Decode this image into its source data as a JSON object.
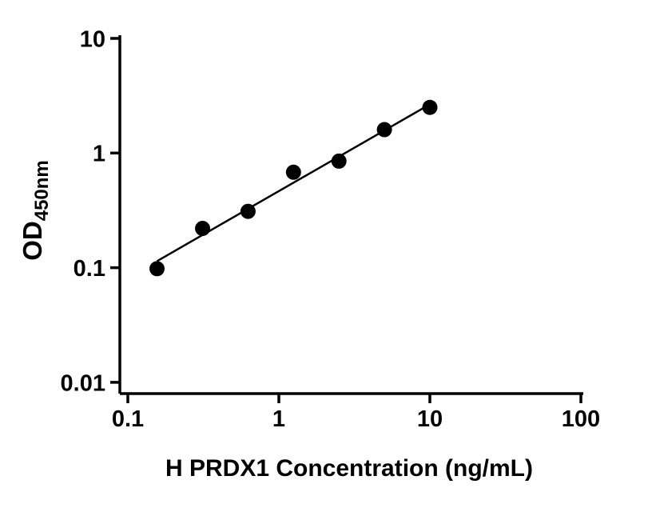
{
  "chart_data": {
    "type": "scatter",
    "title": "",
    "xlabel": "H PRDX1 Concentration (ng/mL)",
    "ylabel_main": "OD",
    "ylabel_sub": "450nm",
    "xscale": "log",
    "yscale": "log",
    "xlim": [
      0.1,
      100
    ],
    "ylim": [
      0.01,
      10
    ],
    "x_ticks": [
      0.1,
      1,
      10,
      100
    ],
    "x_tick_labels": [
      "0.1",
      "1",
      "10",
      "100"
    ],
    "y_ticks": [
      10,
      1,
      0.1,
      0.01
    ],
    "y_tick_labels": [
      "10",
      "1",
      "0.1",
      "0.01"
    ],
    "grid": "off",
    "legend": "none",
    "x": [
      0.156,
      0.3125,
      0.625,
      1.25,
      2.5,
      5,
      10
    ],
    "y": [
      0.098,
      0.22,
      0.31,
      0.68,
      0.85,
      1.6,
      2.5
    ],
    "trendline": true,
    "marker_color": "#000000",
    "line_color": "#000000",
    "axis_color": "#000000",
    "background_color": "#ffffff"
  }
}
